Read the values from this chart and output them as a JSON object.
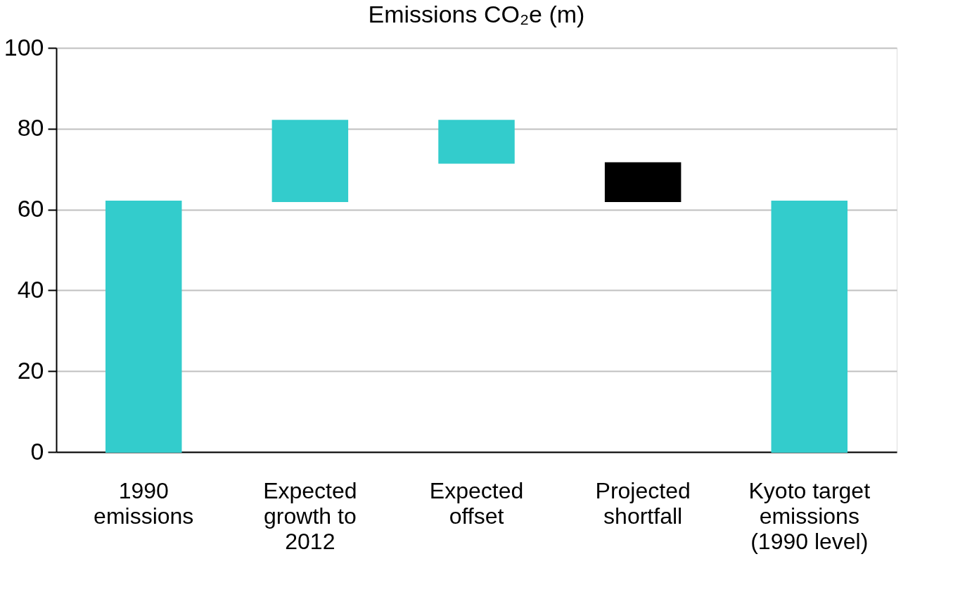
{
  "chart_data": {
    "type": "bar",
    "title": "Emissions CO₂e (m)",
    "categories": [
      "1990 emissions",
      "Expected growth to 2012",
      "Expected offset",
      "Projected shortfall",
      "Kyoto target emissions (1990 level)"
    ],
    "values": [
      62,
      20,
      -10.5,
      9.5,
      62
    ],
    "base": [
      0,
      62,
      82,
      62,
      0
    ],
    "colors": [
      "#33cccc",
      "#33cccc",
      "#33cccc",
      "#000000",
      "#33cccc"
    ],
    "ylim": [
      0,
      100
    ],
    "yticks": [
      0,
      20,
      40,
      60,
      80,
      100
    ],
    "grid": "y"
  }
}
